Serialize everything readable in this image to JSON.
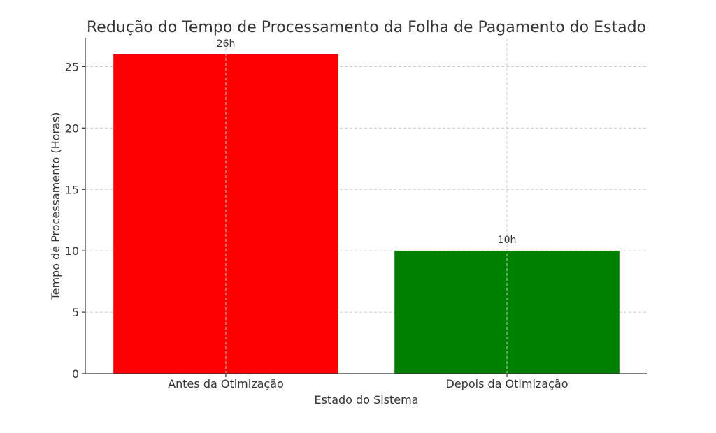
{
  "chart_data": {
    "type": "bar",
    "title": "Redução do Tempo de Processamento da Folha de Pagamento do Estado",
    "xlabel": "Estado do Sistema",
    "ylabel": "Tempo de Processamento (Horas)",
    "categories": [
      "Antes da Otimização",
      "Depois da Otimização"
    ],
    "values": [
      26,
      10
    ],
    "data_labels": [
      "26h",
      "10h"
    ],
    "colors": [
      "#ff0000",
      "#008000"
    ],
    "ylim": [
      0,
      27.3
    ],
    "yticks": [
      0,
      5,
      10,
      15,
      20,
      25
    ],
    "grid": true
  }
}
